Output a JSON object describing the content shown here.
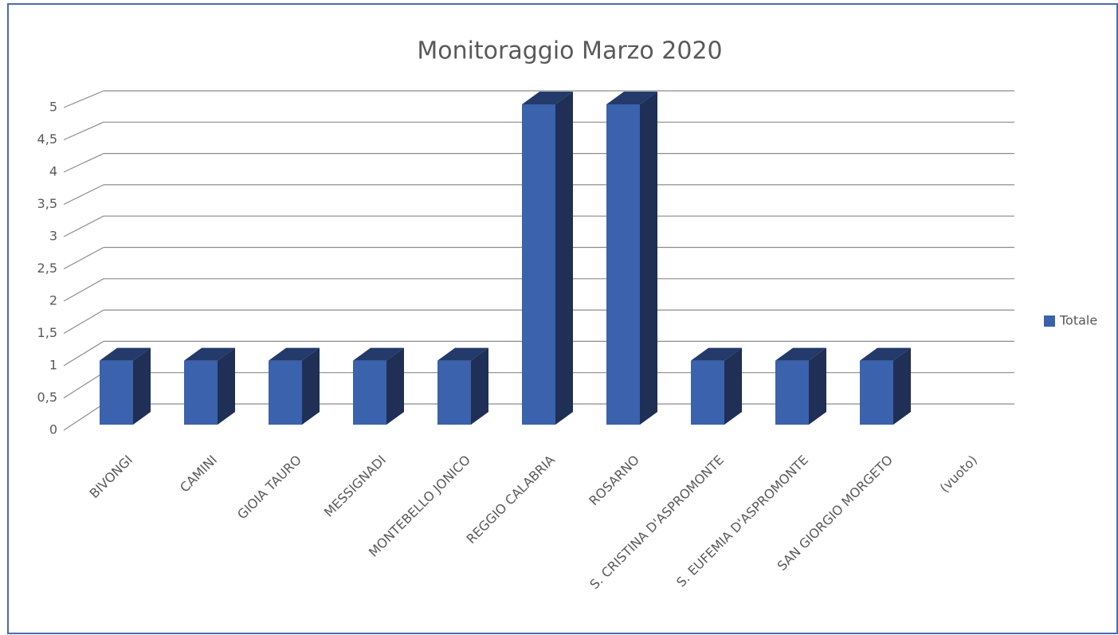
{
  "chart_data": {
    "type": "bar",
    "title": "Monitoraggio Marzo 2020",
    "categories": [
      "BIVONGI",
      "CAMINI",
      "GIOIA TAURO",
      "MESSIGNADI",
      "MONTEBELLO JONICO",
      "REGGIO CALABRIA",
      "ROSARNO",
      "S. CRISTINA D'ASPROMONTE",
      "S. EUFEMIA D'ASPROMONTE",
      "SAN GIORGIO MORGETO",
      "(vuoto)"
    ],
    "series": [
      {
        "name": "Totale",
        "color": "#3a62ad",
        "values": [
          1,
          1,
          1,
          1,
          1,
          5,
          5,
          1,
          1,
          1,
          null
        ]
      }
    ],
    "ylim": [
      0,
      5
    ],
    "yticks": [
      0,
      {
        "value": 0.5,
        "label": "0,5"
      },
      1,
      {
        "value": 1.5,
        "label": "1,5"
      },
      2,
      {
        "value": 2.5,
        "label": "2,5"
      },
      3,
      {
        "value": 3.5,
        "label": "3,5"
      },
      4,
      {
        "value": 4.5,
        "label": "4,5"
      },
      5
    ],
    "grid": true,
    "legend": "right"
  }
}
